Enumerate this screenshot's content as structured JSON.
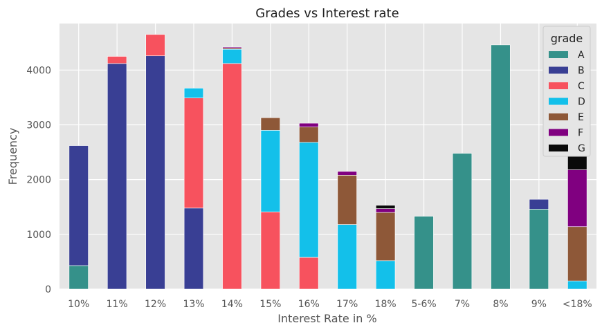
{
  "chart_data": {
    "type": "bar",
    "stacked": true,
    "title": "Grades vs Interest rate",
    "xlabel": "Interest Rate in %",
    "ylabel": "Frequency",
    "ylim": [
      0,
      4850
    ],
    "yticks": [
      0,
      1000,
      2000,
      3000,
      4000
    ],
    "grid": true,
    "legend_title": "grade",
    "legend_position": "top-right",
    "categories": [
      "10%",
      "11%",
      "12%",
      "13%",
      "14%",
      "15%",
      "16%",
      "17%",
      "18%",
      "5-6%",
      "7%",
      "8%",
      "9%",
      "<18%"
    ],
    "series": [
      {
        "name": "A",
        "color": "#35918A",
        "values": [
          430,
          0,
          0,
          0,
          0,
          0,
          0,
          0,
          0,
          1330,
          2480,
          4460,
          1460,
          0
        ]
      },
      {
        "name": "B",
        "color": "#393F94",
        "values": [
          2190,
          4120,
          4260,
          1480,
          0,
          0,
          0,
          0,
          0,
          0,
          0,
          0,
          180,
          0
        ]
      },
      {
        "name": "C",
        "color": "#F7525E",
        "values": [
          0,
          130,
          390,
          2010,
          4120,
          1410,
          580,
          0,
          0,
          0,
          0,
          0,
          0,
          0
        ]
      },
      {
        "name": "D",
        "color": "#13C0EA",
        "values": [
          0,
          0,
          0,
          180,
          260,
          1490,
          2100,
          1180,
          520,
          0,
          0,
          0,
          0,
          150
        ]
      },
      {
        "name": "E",
        "color": "#8E5838",
        "values": [
          0,
          0,
          0,
          0,
          20,
          230,
          280,
          900,
          880,
          0,
          0,
          0,
          0,
          990
        ]
      },
      {
        "name": "F",
        "color": "#800080",
        "values": [
          0,
          0,
          0,
          0,
          20,
          0,
          70,
          70,
          70,
          0,
          0,
          0,
          0,
          1040
        ]
      },
      {
        "name": "G",
        "color": "#0A0A0A",
        "values": [
          0,
          0,
          0,
          0,
          0,
          0,
          0,
          0,
          60,
          0,
          0,
          0,
          0,
          410
        ]
      }
    ]
  }
}
